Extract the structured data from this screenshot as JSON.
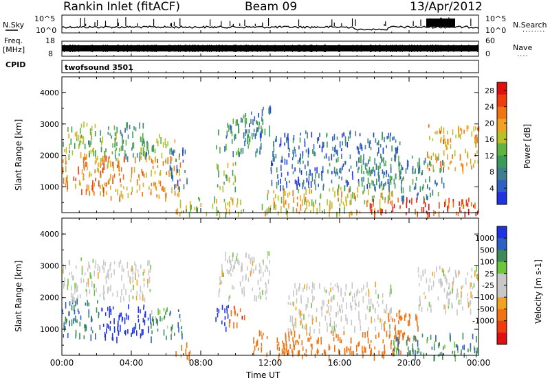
{
  "header": {
    "station": "Rankin Inlet (fitACF)",
    "beam": "Beam 09",
    "date": "13/Apr/2012"
  },
  "nsky_panel": {
    "left_label": "N.Sky",
    "left_ticks": [
      "10^5",
      "10^0"
    ],
    "right_label": "N.Search",
    "right_ticks": [
      "10^5",
      "10^0"
    ],
    "right_dots": "........"
  },
  "freq_panel": {
    "left_label_1": "Freq.",
    "left_label_2": "[MHz]",
    "left_ticks": [
      "18",
      "8"
    ],
    "right_label": "Nave",
    "right_ticks": [
      "60",
      "0"
    ],
    "right_dots": "...."
  },
  "cpid_panel": {
    "label": "CPID",
    "program": "twofsound 3501"
  },
  "colors": {
    "power_scale": [
      "#1f33e0",
      "#2e60c4",
      "#3d7e90",
      "#3a9a5a",
      "#5fb33f",
      "#b8c12a",
      "#f0a222",
      "#f07512",
      "#ee3c0e",
      "#e01010"
    ],
    "velocity_scale": [
      "#1f33e0",
      "#2e60c4",
      "#3d8a5a",
      "#6ec43b",
      "#c8c8c8",
      "#c8c8c8",
      "#f0a222",
      "#f07512",
      "#ee3c0e",
      "#e01010"
    ]
  },
  "chart_data": [
    {
      "type": "heatmap",
      "title": "Power",
      "xlabel": "",
      "ylabel": "Slant Range [km]",
      "x_ticks": [
        "00:00",
        "04:00",
        "08:00",
        "12:00",
        "16:00",
        "20:00",
        "00:00"
      ],
      "y_ticks": [
        1000,
        2000,
        3000,
        4000
      ],
      "ylim": [
        180,
        4500
      ],
      "xlim_hours": [
        0,
        24
      ],
      "colorbar": {
        "label": "Power [dB]",
        "ticks": [
          4,
          8,
          12,
          16,
          20,
          24,
          28
        ],
        "range": [
          0,
          30
        ]
      },
      "regions": [
        {
          "t0": 0.0,
          "t1": 2.6,
          "r0": 800,
          "r1": 2000,
          "v": 22
        },
        {
          "t0": 0.0,
          "t1": 1.8,
          "r0": 2000,
          "r1": 3100,
          "v": 16
        },
        {
          "t0": 1.5,
          "t1": 3.2,
          "r0": 2000,
          "r1": 3000,
          "v": 12
        },
        {
          "t0": 2.0,
          "t1": 6.8,
          "r0": 700,
          "r1": 2000,
          "v": 20
        },
        {
          "t0": 3.0,
          "t1": 5.0,
          "r0": 1900,
          "r1": 3100,
          "v": 10
        },
        {
          "t0": 4.5,
          "t1": 6.5,
          "r0": 2000,
          "r1": 2700,
          "v": 14
        },
        {
          "t0": 6.2,
          "t1": 7.2,
          "r0": 1000,
          "r1": 2300,
          "v": 6
        },
        {
          "t0": 6.5,
          "t1": 10.5,
          "r0": 180,
          "r1": 700,
          "v": 16
        },
        {
          "t0": 8.8,
          "t1": 10.0,
          "r0": 1000,
          "r1": 1800,
          "v": 14
        },
        {
          "t0": 8.8,
          "t1": 11.5,
          "r0": 2100,
          "r1": 3300,
          "v": 10
        },
        {
          "t0": 10.5,
          "t1": 12.0,
          "r0": 2600,
          "r1": 3600,
          "v": 6
        },
        {
          "t0": 11.5,
          "t1": 19.0,
          "r0": 180,
          "r1": 1000,
          "v": 18
        },
        {
          "t0": 12.0,
          "t1": 19.5,
          "r0": 1000,
          "r1": 2800,
          "v": 6
        },
        {
          "t0": 17.0,
          "t1": 19.5,
          "r0": 1100,
          "r1": 2000,
          "v": 10
        },
        {
          "t0": 17.5,
          "t1": 24.0,
          "r0": 180,
          "r1": 700,
          "v": 26
        },
        {
          "t0": 19.5,
          "t1": 22.0,
          "r0": 700,
          "r1": 2000,
          "v": 8
        },
        {
          "t0": 21.0,
          "t1": 24.0,
          "r0": 1600,
          "r1": 3000,
          "v": 20
        }
      ]
    },
    {
      "type": "heatmap",
      "title": "Velocity",
      "xlabel": "Time UT",
      "ylabel": "Slant Range [km]",
      "x_ticks": [
        "00:00",
        "04:00",
        "08:00",
        "12:00",
        "16:00",
        "20:00",
        "00:00"
      ],
      "y_ticks": [
        1000,
        2000,
        3000,
        4000
      ],
      "ylim": [
        180,
        4500
      ],
      "xlim_hours": [
        0,
        24
      ],
      "colorbar": {
        "label": "Velocity [m s-1]",
        "ticks": [
          "1000",
          "500",
          "100",
          "25",
          "-25",
          "-100",
          "-500",
          "-1000"
        ]
      },
      "regions": [
        {
          "t0": 0.0,
          "t1": 2.2,
          "r0": 800,
          "r1": 2000,
          "v": 300
        },
        {
          "t0": 0.0,
          "t1": 2.0,
          "r0": 2000,
          "r1": 3300,
          "v": 0
        },
        {
          "t0": 2.0,
          "t1": 5.2,
          "r0": 2000,
          "r1": 3200,
          "v": 0
        },
        {
          "t0": 2.2,
          "t1": 5.0,
          "r0": 700,
          "r1": 1800,
          "v": 900
        },
        {
          "t0": 5.0,
          "t1": 7.0,
          "r0": 700,
          "r1": 1700,
          "v": 200
        },
        {
          "t0": 6.5,
          "t1": 7.5,
          "r0": 180,
          "r1": 600,
          "v": -200
        },
        {
          "t0": 8.8,
          "t1": 9.6,
          "r0": 1000,
          "r1": 1800,
          "v": 900
        },
        {
          "t0": 9.6,
          "t1": 10.5,
          "r0": 1100,
          "r1": 1800,
          "v": -400
        },
        {
          "t0": 9.0,
          "t1": 12.0,
          "r0": 2000,
          "r1": 3500,
          "v": 0
        },
        {
          "t0": 11.0,
          "t1": 19.5,
          "r0": 180,
          "r1": 1000,
          "v": -300
        },
        {
          "t0": 13.0,
          "t1": 19.0,
          "r0": 1000,
          "r1": 2500,
          "v": 0
        },
        {
          "t0": 18.5,
          "t1": 20.5,
          "r0": 700,
          "r1": 1700,
          "v": -300
        },
        {
          "t0": 19.0,
          "t1": 24.0,
          "r0": 180,
          "r1": 900,
          "v": 200
        },
        {
          "t0": 20.5,
          "t1": 24.0,
          "r0": 1600,
          "r1": 3000,
          "v": 0
        }
      ]
    }
  ]
}
